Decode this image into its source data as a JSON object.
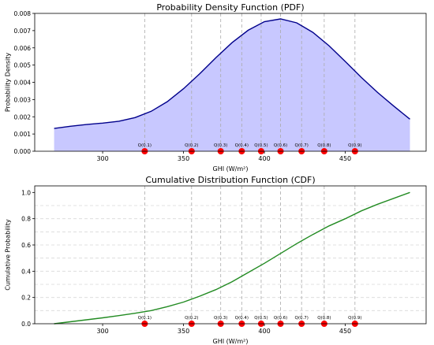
{
  "chart_data": [
    {
      "type": "area",
      "title": "Probability Density Function (PDF)",
      "xlabel": "GHI (W/m²)",
      "ylabel": "Probability Density",
      "xlim": [
        258,
        500
      ],
      "ylim": [
        0,
        0.008
      ],
      "xticks": [
        300,
        350,
        400,
        450
      ],
      "yticks": [
        0.0,
        0.001,
        0.002,
        0.003,
        0.004,
        0.005,
        0.006,
        0.007,
        0.008
      ],
      "ytick_labels": [
        "0.000",
        "0.001",
        "0.002",
        "0.003",
        "0.004",
        "0.005",
        "0.006",
        "0.007",
        "0.008"
      ],
      "grid": false,
      "series": [
        {
          "x": [
            270,
            280,
            290,
            300,
            310,
            320,
            330,
            340,
            350,
            360,
            370,
            380,
            390,
            400,
            410,
            420,
            430,
            440,
            450,
            460,
            470,
            480,
            490
          ],
          "values": [
            0.00132,
            0.00145,
            0.00155,
            0.00163,
            0.00174,
            0.00195,
            0.00232,
            0.00288,
            0.00363,
            0.0045,
            0.00543,
            0.0063,
            0.00702,
            0.00752,
            0.00768,
            0.00745,
            0.0069,
            0.00612,
            0.00521,
            0.00428,
            0.00341,
            0.00262,
            0.00186
          ]
        }
      ],
      "quantiles": {
        "labels": [
          "Q(0.1)",
          "Q(0.2)",
          "Q(0.3)",
          "Q(0.4)",
          "Q(0.5)",
          "Q(0.6)",
          "Q(0.7)",
          "Q(0.8)",
          "Q(0.9)"
        ],
        "x": [
          326,
          355,
          373,
          386,
          398,
          410,
          423,
          437,
          456
        ],
        "y": 0
      },
      "colors": {
        "line": "#00008b",
        "fill": "#c8c8ff",
        "marker": "#ff0000",
        "vline": "#aaaaaa"
      }
    },
    {
      "type": "line",
      "title": "Cumulative Distribution Function (CDF)",
      "xlabel": "GHI (W/m²)",
      "ylabel": "Cumulative Probability",
      "xlim": [
        258,
        500
      ],
      "ylim": [
        0,
        1.05
      ],
      "xticks": [
        300,
        350,
        400,
        450
      ],
      "yticks": [
        0.0,
        0.2,
        0.4,
        0.6,
        0.8,
        1.0
      ],
      "ytick_labels": [
        "0.0",
        "0.2",
        "0.4",
        "0.6",
        "0.8",
        "1.0"
      ],
      "grid": true,
      "series": [
        {
          "x": [
            270,
            280,
            290,
            300,
            310,
            320,
            330,
            340,
            350,
            360,
            370,
            380,
            390,
            400,
            410,
            420,
            430,
            440,
            450,
            460,
            470,
            480,
            490
          ],
          "values": [
            0.0,
            0.015,
            0.03,
            0.045,
            0.062,
            0.08,
            0.1,
            0.13,
            0.165,
            0.21,
            0.26,
            0.32,
            0.39,
            0.46,
            0.535,
            0.61,
            0.68,
            0.745,
            0.8,
            0.86,
            0.91,
            0.955,
            1.0
          ]
        }
      ],
      "quantiles": {
        "labels": [
          "Q(0.1)",
          "Q(0.2)",
          "Q(0.3)",
          "Q(0.4)",
          "Q(0.5)",
          "Q(0.6)",
          "Q(0.7)",
          "Q(0.8)",
          "Q(0.9)"
        ],
        "x": [
          326,
          355,
          373,
          386,
          398,
          410,
          423,
          437,
          456
        ],
        "y": 0,
        "hlevels": [
          0.1,
          0.2,
          0.3,
          0.4,
          0.5,
          0.6,
          0.7,
          0.8,
          0.9
        ]
      },
      "colors": {
        "line": "#228b22",
        "marker": "#ff0000",
        "vline": "#aaaaaa",
        "grid": "#d9d9d9"
      }
    }
  ]
}
